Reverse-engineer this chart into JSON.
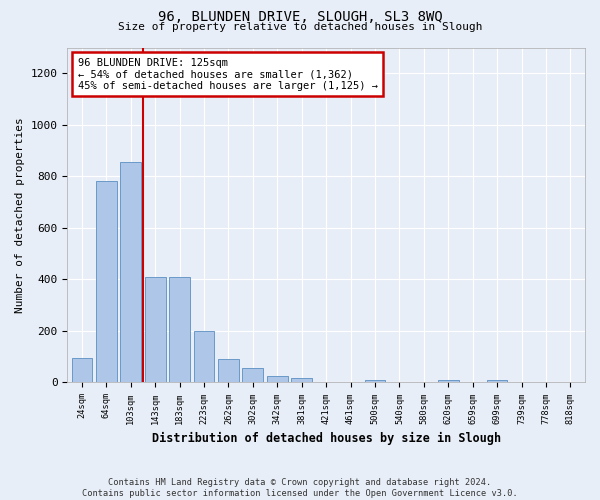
{
  "title": "96, BLUNDEN DRIVE, SLOUGH, SL3 8WQ",
  "subtitle": "Size of property relative to detached houses in Slough",
  "xlabel": "Distribution of detached houses by size in Slough",
  "ylabel": "Number of detached properties",
  "bar_color": "#aec6e8",
  "bar_edge_color": "#5a8fc2",
  "categories": [
    "24sqm",
    "64sqm",
    "103sqm",
    "143sqm",
    "183sqm",
    "223sqm",
    "262sqm",
    "302sqm",
    "342sqm",
    "381sqm",
    "421sqm",
    "461sqm",
    "500sqm",
    "540sqm",
    "580sqm",
    "620sqm",
    "659sqm",
    "699sqm",
    "739sqm",
    "778sqm",
    "818sqm"
  ],
  "values": [
    95,
    780,
    855,
    410,
    410,
    200,
    90,
    55,
    25,
    15,
    0,
    0,
    10,
    0,
    0,
    10,
    0,
    10,
    0,
    0,
    0
  ],
  "vline_x": 2.5,
  "annotation_text": "96 BLUNDEN DRIVE: 125sqm\n← 54% of detached houses are smaller (1,362)\n45% of semi-detached houses are larger (1,125) →",
  "annotation_box_color": "#ffffff",
  "annotation_box_edgecolor": "#cc0000",
  "vline_color": "#cc0000",
  "ylim": [
    0,
    1300
  ],
  "yticks": [
    0,
    200,
    400,
    600,
    800,
    1000,
    1200
  ],
  "footer": "Contains HM Land Registry data © Crown copyright and database right 2024.\nContains public sector information licensed under the Open Government Licence v3.0.",
  "background_color": "#e8eef7",
  "plot_bg_color": "#e8eef7"
}
